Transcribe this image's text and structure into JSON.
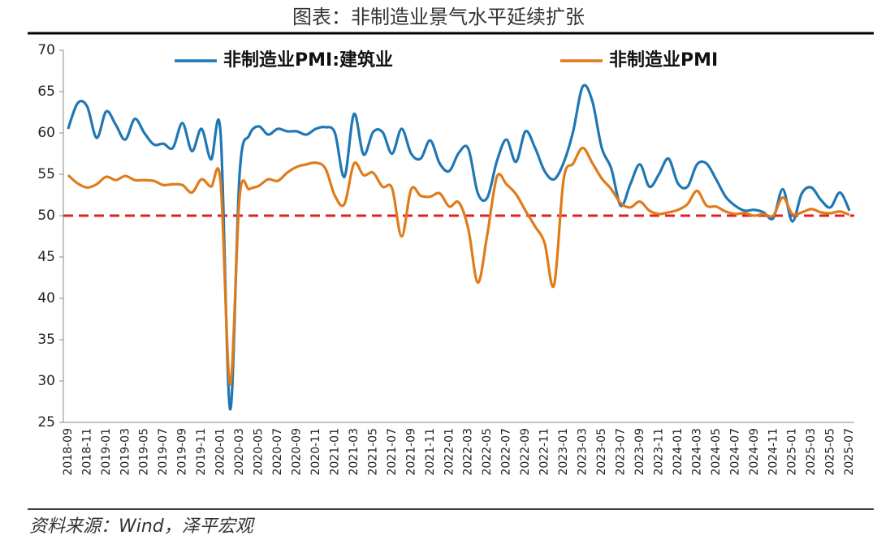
{
  "chart_data": {
    "type": "line",
    "title": "图表：非制造业景气水平延续扩张",
    "source": "资料来源：Wind，泽平宏观",
    "categories": [
      "2018-09",
      null,
      "2018-11",
      null,
      "2019-01",
      null,
      "2019-03",
      null,
      "2019-05",
      null,
      "2019-07",
      null,
      "2019-09",
      null,
      "2019-11",
      null,
      "2020-01",
      null,
      "2020-03",
      null,
      "2020-05",
      null,
      "2020-07",
      null,
      "2020-09",
      null,
      "2020-11",
      null,
      "2021-01",
      null,
      "2021-03",
      null,
      "2021-05",
      null,
      "2021-07",
      null,
      "2021-09",
      null,
      "2021-11",
      null,
      "2022-01",
      null,
      "2022-03",
      null,
      "2022-05",
      null,
      "2022-07",
      null,
      "2022-09",
      null,
      "2022-11",
      null,
      "2023-01",
      null,
      "2023-03",
      null,
      "2023-05",
      null,
      "2023-07",
      null,
      "2023-09",
      null,
      "2023-11",
      null,
      "2024-01",
      null,
      "2024-03",
      null,
      "2024-05",
      null,
      "2024-07",
      null,
      "2024-09",
      null,
      "2024-11",
      null,
      "2025-01",
      null,
      "2025-03",
      null,
      "2025-05",
      null,
      "2025-07"
    ],
    "series": [
      {
        "name": "非制造业PMI:建筑业",
        "color": "#1f77b4",
        "values": [
          60.5,
          63.6,
          63.2,
          59.4,
          62.6,
          61.0,
          59.2,
          61.7,
          60.0,
          58.6,
          58.7,
          58.2,
          61.2,
          57.8,
          60.5,
          56.8,
          60.0,
          26.6,
          55.1,
          59.7,
          60.8,
          59.8,
          60.5,
          60.2,
          60.2,
          59.8,
          60.5,
          60.7,
          60.0,
          54.7,
          62.3,
          57.4,
          60.1,
          60.1,
          57.5,
          60.5,
          57.5,
          56.9,
          59.1,
          56.3,
          55.4,
          57.6,
          58.1,
          52.7,
          52.2,
          56.6,
          59.2,
          56.5,
          60.2,
          58.2,
          55.4,
          54.4,
          56.4,
          60.2,
          65.6,
          63.9,
          58.2,
          55.7,
          51.2,
          53.8,
          56.2,
          53.5,
          55.0,
          56.9,
          53.9,
          53.5,
          56.2,
          56.3,
          54.4,
          52.3,
          51.2,
          50.6,
          50.7,
          50.4,
          49.7,
          53.2,
          49.3,
          52.7,
          53.4,
          51.9,
          51.0,
          52.8,
          50.6
        ]
      },
      {
        "name": "非制造业PMI",
        "color": "#e07b1a",
        "values": [
          54.9,
          53.9,
          53.4,
          53.8,
          54.7,
          54.3,
          54.8,
          54.3,
          54.3,
          54.2,
          53.7,
          53.8,
          53.7,
          52.8,
          54.4,
          53.5,
          54.1,
          29.6,
          52.3,
          53.2,
          53.6,
          54.4,
          54.2,
          55.2,
          55.9,
          56.2,
          56.4,
          55.7,
          52.4,
          51.4,
          56.3,
          54.9,
          55.2,
          53.5,
          53.3,
          47.5,
          53.2,
          52.4,
          52.3,
          52.7,
          51.1,
          51.6,
          48.4,
          41.9,
          47.8,
          54.7,
          53.8,
          52.6,
          50.6,
          48.7,
          46.7,
          41.6,
          54.4,
          56.3,
          58.2,
          56.4,
          54.5,
          53.2,
          51.5,
          51.0,
          51.7,
          50.6,
          50.2,
          50.4,
          50.7,
          51.4,
          53.0,
          51.2,
          51.1,
          50.5,
          50.2,
          50.3,
          50.0,
          50.2,
          50.0,
          52.2,
          50.2,
          50.4,
          50.8,
          50.4,
          50.3,
          50.5,
          50.1
        ]
      }
    ],
    "ylim": [
      25,
      70
    ],
    "yticks": [
      25,
      30,
      35,
      40,
      45,
      50,
      55,
      60,
      65,
      70
    ],
    "reference_line": {
      "value": 50,
      "color": "#e02020"
    },
    "legend": "top",
    "grid": false
  }
}
